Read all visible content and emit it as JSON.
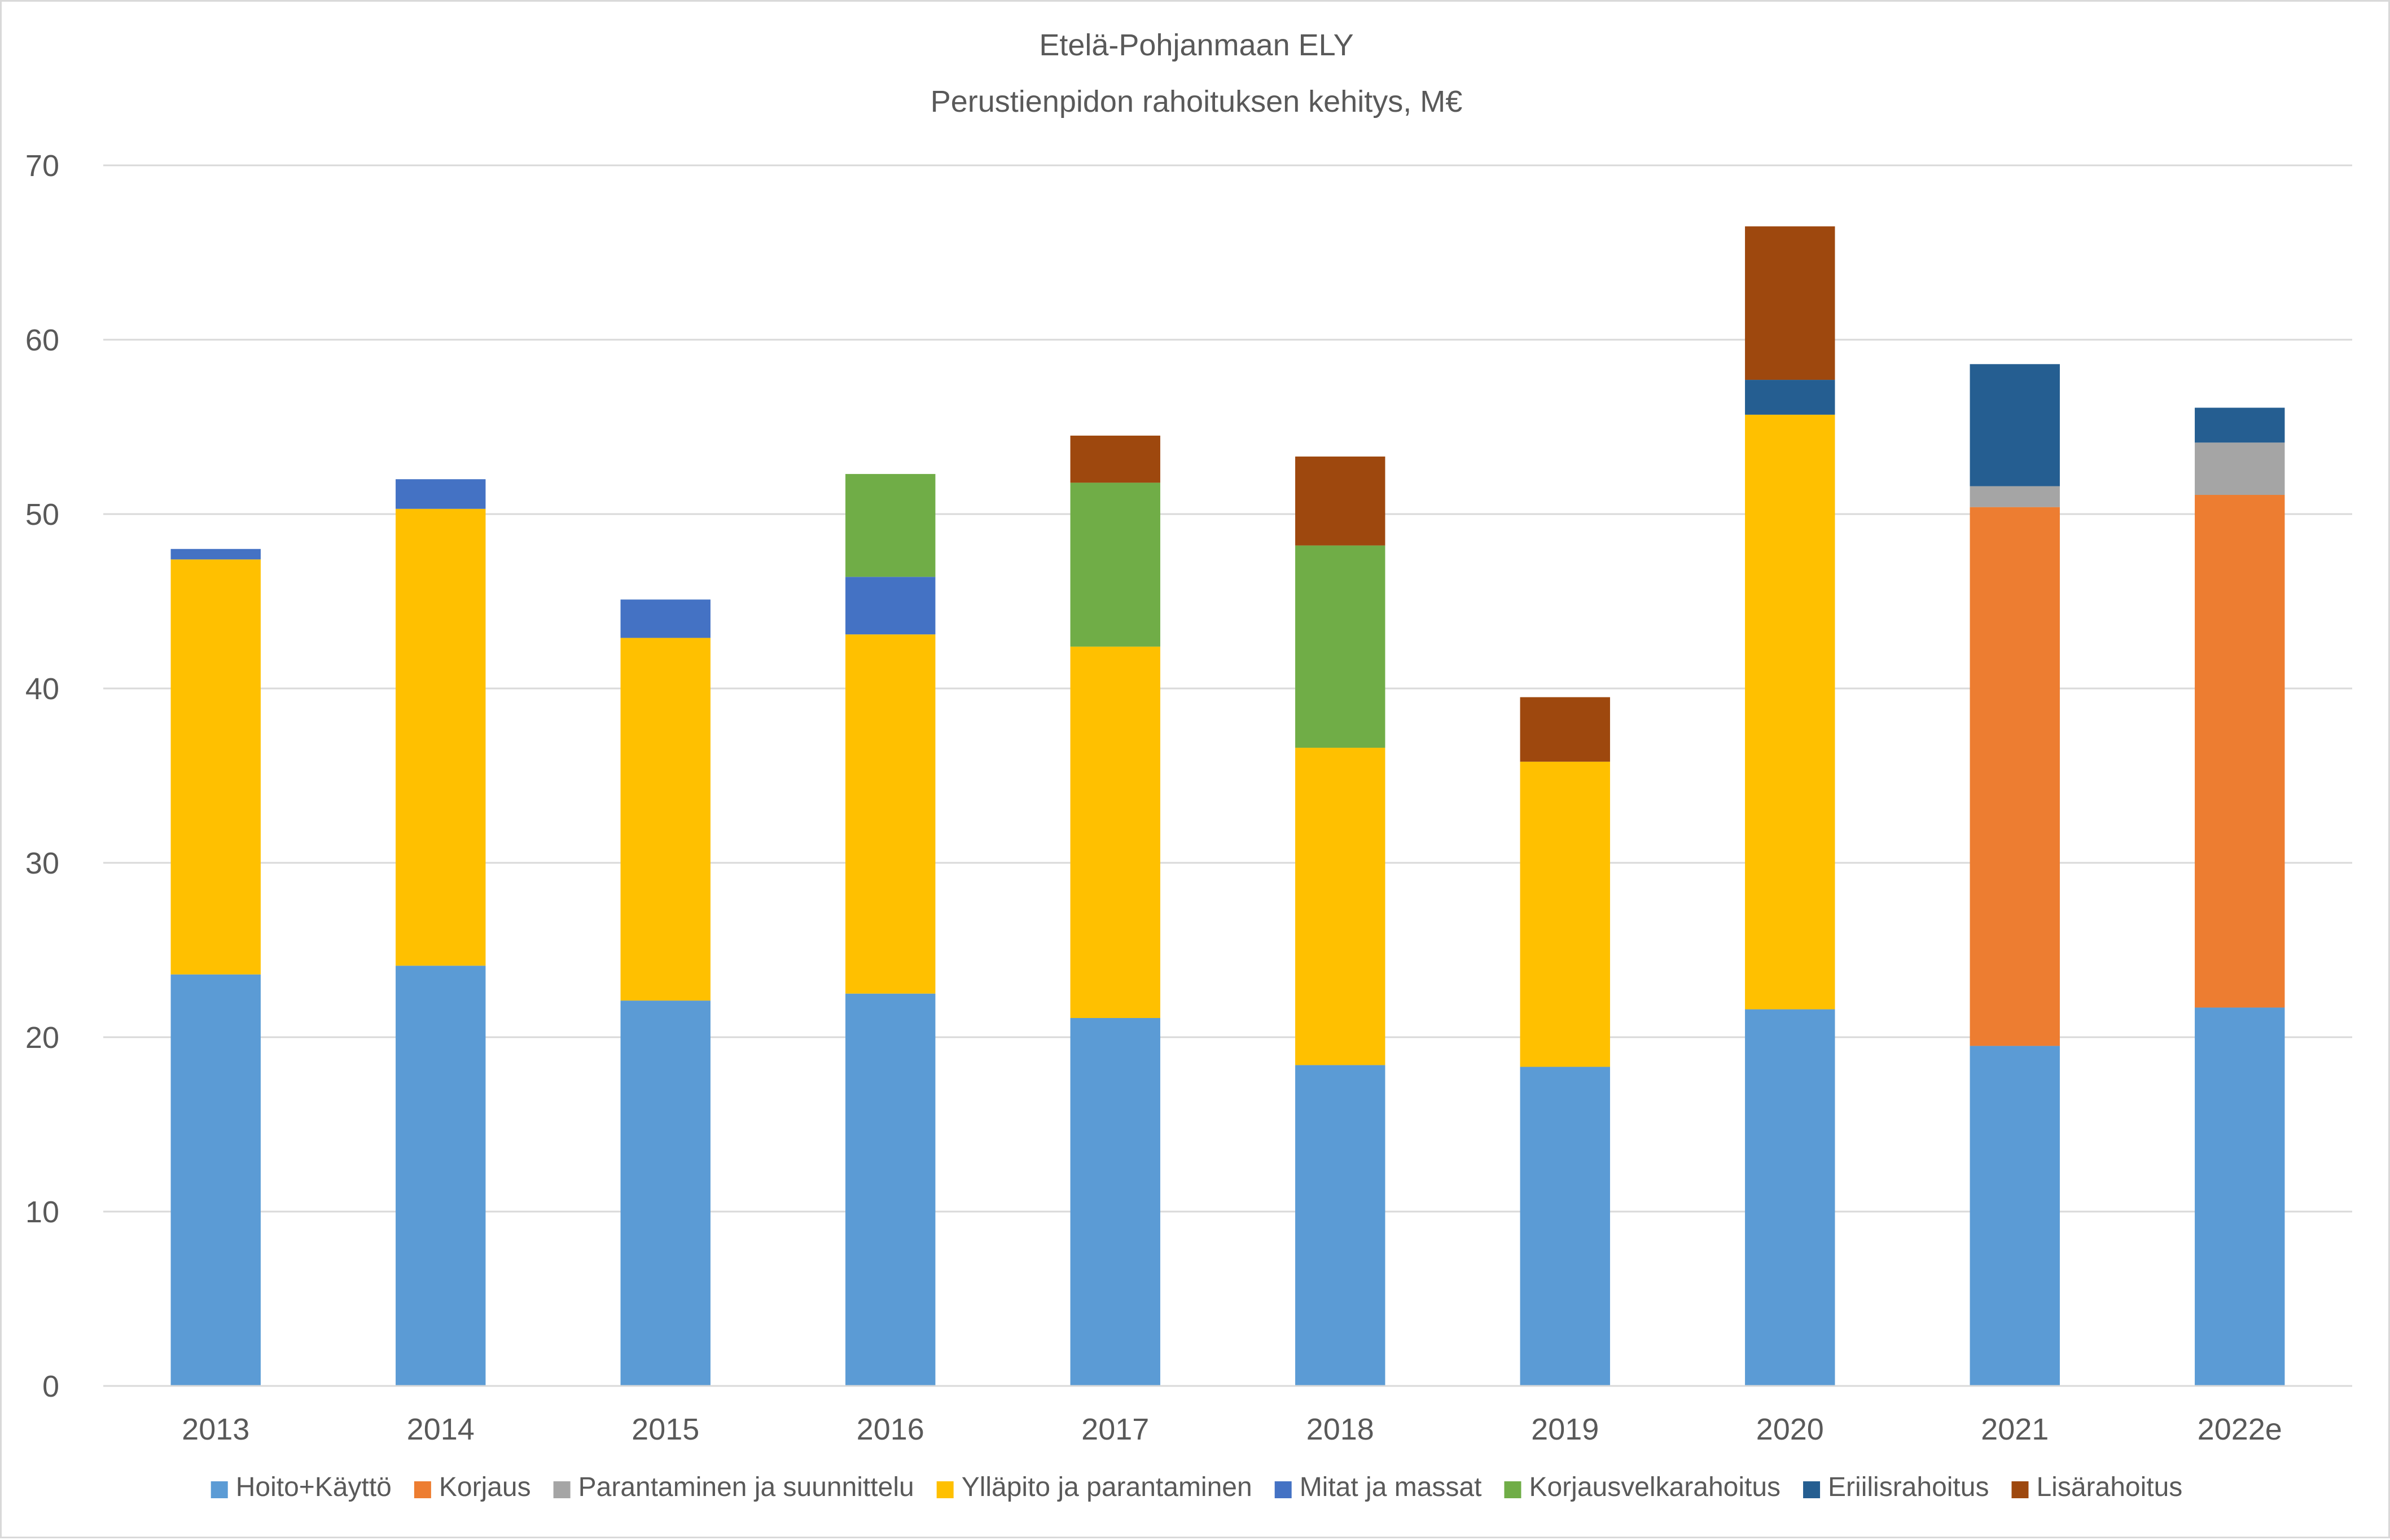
{
  "chart_data": {
    "type": "bar",
    "stacked": true,
    "title": "Etelä-Pohjanmaan ELY",
    "subtitle": "Perustienpidon rahoituksen kehitys, M€",
    "xlabel": "",
    "ylabel": "",
    "ylim": [
      0,
      70
    ],
    "yticks": [
      "0",
      "10",
      "20",
      "30",
      "40",
      "50",
      "60",
      "70"
    ],
    "grid": true,
    "legend_position": "bottom",
    "categories": [
      "2013",
      "2014",
      "2015",
      "2016",
      "2017",
      "2018",
      "2019",
      "2020",
      "2021",
      "2022e"
    ],
    "series": [
      {
        "name": "Hoito+Käyttö",
        "color": "#5B9BD5",
        "values": [
          23.6,
          24.1,
          22.1,
          22.5,
          21.1,
          18.4,
          18.3,
          21.6,
          19.5,
          21.7
        ]
      },
      {
        "name": "Korjaus",
        "color": "#ED7D31",
        "values": [
          0,
          0,
          0,
          0,
          0,
          0,
          0,
          0,
          30.9,
          29.4
        ]
      },
      {
        "name": "Parantaminen ja suunnittelu",
        "color": "#A5A5A5",
        "values": [
          0,
          0,
          0,
          0,
          0,
          0,
          0,
          0,
          1.2,
          3.0
        ]
      },
      {
        "name": "Ylläpito ja parantaminen",
        "color": "#FFC000",
        "values": [
          23.8,
          26.2,
          20.8,
          20.6,
          21.3,
          18.2,
          17.5,
          34.1,
          0,
          0
        ]
      },
      {
        "name": "Mitat ja massat",
        "color": "#4472C4",
        "values": [
          0.6,
          1.7,
          2.2,
          3.3,
          0,
          0,
          0,
          0,
          0,
          0
        ]
      },
      {
        "name": "Korjausvelkarahoitus",
        "color": "#70AD47",
        "values": [
          0,
          0,
          0,
          5.9,
          9.4,
          11.6,
          0,
          0,
          0,
          0
        ]
      },
      {
        "name": "Eriilisrahoitus",
        "color": "#255E91",
        "values": [
          0,
          0,
          0,
          0,
          0,
          0,
          0,
          2.0,
          7.0,
          2.0
        ]
      },
      {
        "name": "Lisärahoitus",
        "color": "#9E480E",
        "values": [
          0,
          0,
          0,
          0,
          2.7,
          5.1,
          3.7,
          8.8,
          0,
          0
        ]
      }
    ]
  }
}
